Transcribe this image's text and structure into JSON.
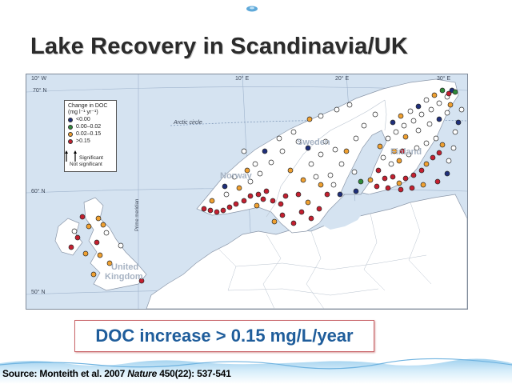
{
  "slide": {
    "title": "Lake Recovery in Scandinavia/UK",
    "callout": "DOC increase > 0.15 mg/L/year",
    "source": {
      "label": "Source:",
      "authors": "Monteith et al. 2007",
      "journal": "Nature",
      "citation": "450(22):  537-541"
    }
  },
  "map": {
    "longitude_labels": [
      "10° W",
      "10° E",
      "20° E",
      "30° E"
    ],
    "latitude_labels": [
      "70° N",
      "60° N",
      "50° N"
    ],
    "arctic_circle": "Arctic circle",
    "prime_meridian": "Prime meridian",
    "countries": [
      "Sweden",
      "Finland",
      "Norway",
      "United",
      "Kingdom"
    ],
    "colors": {
      "water": "#d5e3f1",
      "land": "#ffffff",
      "grid": "#7f98b8",
      "dark_blue": "#1f2f7a",
      "green": "#2f8a3a",
      "orange": "#f0a030",
      "red": "#c41f2f"
    }
  },
  "legend": {
    "title_line1": "Change in DOC",
    "title_line2": "(mg l⁻¹ yr⁻¹)",
    "items": [
      {
        "label": "<0.00",
        "color": "#1f2f7a"
      },
      {
        "label": "0.00–0.02",
        "color": "#2f8a3a"
      },
      {
        "label": "0.02–0.15",
        "color": "#f0a030"
      },
      {
        "label": ">0.15",
        "color": "#c41f2f"
      }
    ],
    "significant": "Significant",
    "not_significant": "Not significant"
  }
}
